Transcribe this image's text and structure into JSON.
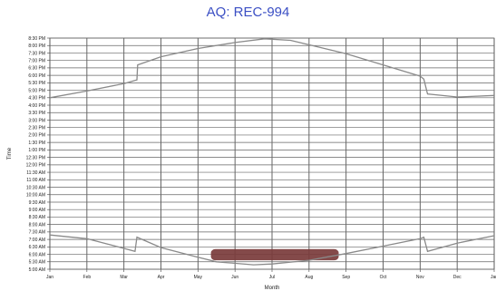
{
  "chart_data": {
    "type": "line",
    "title": "AQ: REC-994",
    "xlabel": "Month",
    "ylabel": "Time",
    "x_tick_labels": [
      "Jan",
      "Feb",
      "Mar",
      "Apr",
      "May",
      "Jun",
      "Jul",
      "Aug",
      "Sep",
      "Oct",
      "Nov",
      "Dec",
      "Jan"
    ],
    "y_tick_labels": [
      "8:30 PM",
      "8:00 PM",
      "7:30 PM",
      "7:00 PM",
      "6:30 PM",
      "6:00 PM",
      "5:30 PM",
      "5:00 PM",
      "4:30 PM",
      "4:00 PM",
      "3:30 PM",
      "3:00 PM",
      "2:30 PM",
      "2:00 PM",
      "1:30 PM",
      "1:00 PM",
      "12:30 PM",
      "12:00 PM",
      "11:30 AM",
      "11:00 AM",
      "10:30 AM",
      "10:00 AM",
      "9:30 AM",
      "9:00 AM",
      "8:30 AM",
      "8:00 AM",
      "7:30 AM",
      "7:00 AM",
      "6:30 AM",
      "6:00 AM",
      "5:30 AM",
      "5:00 AM"
    ],
    "x_range_months": [
      0,
      12
    ],
    "y_range_hours": [
      5.0,
      20.5
    ],
    "grid": true,
    "series": [
      {
        "role": "sunset",
        "color": "#8a8a8a",
        "points": [
          [
            0,
            16.5
          ],
          [
            1,
            16.95
          ],
          [
            2,
            17.45
          ],
          [
            2.35,
            17.7
          ],
          [
            2.37,
            18.7
          ],
          [
            3,
            19.25
          ],
          [
            4,
            19.8
          ],
          [
            5,
            20.2
          ],
          [
            5.8,
            20.45
          ],
          [
            6.5,
            20.35
          ],
          [
            7,
            20.05
          ],
          [
            8,
            19.45
          ],
          [
            9,
            18.7
          ],
          [
            10,
            17.95
          ],
          [
            10.1,
            17.75
          ],
          [
            10.2,
            16.75
          ],
          [
            11,
            16.55
          ],
          [
            12,
            16.65
          ]
        ]
      },
      {
        "role": "sunrise",
        "color": "#8a8a8a",
        "points": [
          [
            0,
            7.3
          ],
          [
            1,
            7.05
          ],
          [
            2,
            6.4
          ],
          [
            2.3,
            6.2
          ],
          [
            2.35,
            7.15
          ],
          [
            3,
            6.45
          ],
          [
            4,
            5.8
          ],
          [
            4.5,
            5.5
          ],
          [
            5.5,
            5.3
          ],
          [
            6,
            5.35
          ],
          [
            7,
            5.6
          ],
          [
            8,
            6.05
          ],
          [
            9,
            6.55
          ],
          [
            10,
            7.05
          ],
          [
            10.1,
            7.15
          ],
          [
            10.2,
            6.2
          ],
          [
            11,
            6.75
          ],
          [
            12,
            7.25
          ]
        ]
      }
    ],
    "highlight": {
      "color": "#7a3b3b",
      "x_range_months": [
        4.35,
        7.8
      ],
      "y_range_hours": [
        5.6,
        6.35
      ]
    }
  }
}
